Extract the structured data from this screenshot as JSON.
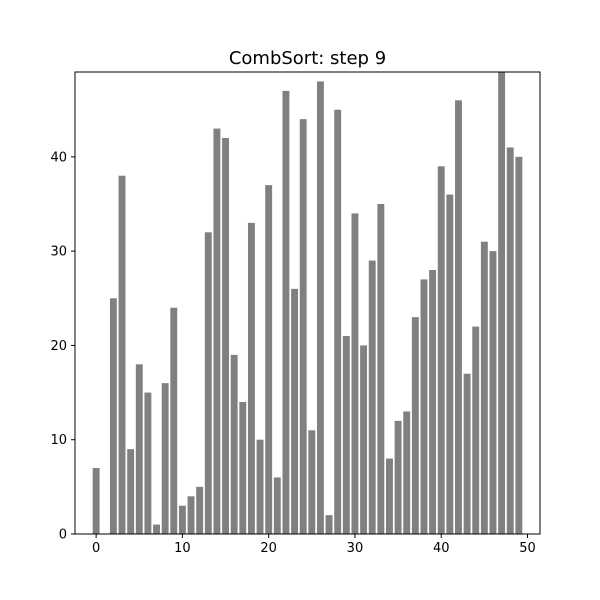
{
  "chart_data": {
    "type": "bar",
    "title": "CombSort: step 9",
    "xlabel": "",
    "ylabel": "",
    "bar_color": "#808080",
    "x": [
      0,
      1,
      2,
      3,
      4,
      5,
      6,
      7,
      8,
      9,
      10,
      11,
      12,
      13,
      14,
      15,
      16,
      17,
      18,
      19,
      20,
      21,
      22,
      23,
      24,
      25,
      26,
      27,
      28,
      29,
      30,
      31,
      32,
      33,
      34,
      35,
      36,
      37,
      38,
      39,
      40,
      41,
      42,
      43,
      44,
      45,
      46,
      47,
      48,
      49
    ],
    "values": [
      7,
      0,
      25,
      38,
      9,
      18,
      15,
      1,
      16,
      24,
      3,
      4,
      5,
      32,
      43,
      42,
      19,
      14,
      33,
      10,
      37,
      6,
      47,
      26,
      44,
      11,
      48,
      2,
      45,
      21,
      34,
      20,
      29,
      35,
      8,
      12,
      13,
      23,
      27,
      28,
      39,
      36,
      46,
      17,
      22,
      31,
      30,
      49,
      41,
      40
    ],
    "xlim": [
      -2.45,
      51.45
    ],
    "ylim": [
      0,
      49
    ],
    "xticks": [
      0,
      10,
      20,
      30,
      40,
      50
    ],
    "yticks": [
      0,
      10,
      20,
      30,
      40
    ],
    "grid": false,
    "legend": "none"
  }
}
